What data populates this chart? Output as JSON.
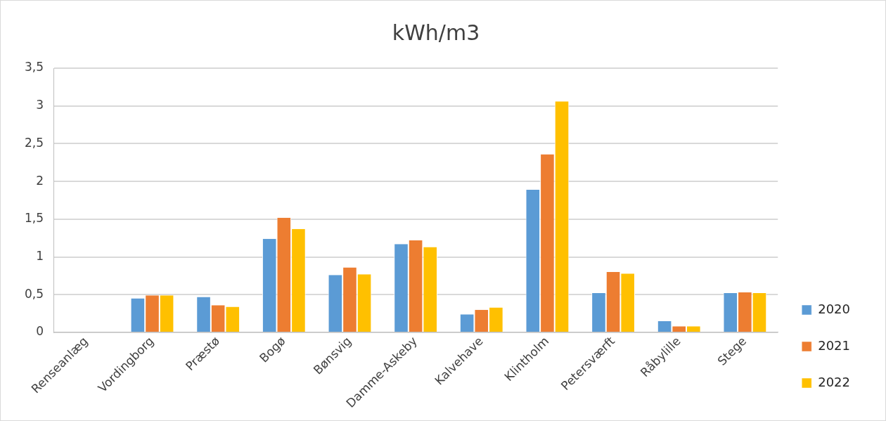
{
  "chart_data": {
    "type": "bar",
    "title": "kWh/m3",
    "categories": [
      "Renseanlæg",
      "Vordingborg",
      "Præstø",
      "Bogø",
      "Bønsvig",
      "Damme-Askeby",
      "Kalvehave",
      "Klintholm",
      "Petersværft",
      "Råbylille",
      "Stege"
    ],
    "series": [
      {
        "name": "2020",
        "color": "#5b9bd5",
        "values": [
          null,
          0.45,
          0.47,
          1.24,
          0.76,
          1.17,
          0.24,
          1.89,
          0.52,
          0.15,
          0.52
        ]
      },
      {
        "name": "2021",
        "color": "#ed7d31",
        "values": [
          null,
          0.49,
          0.36,
          1.52,
          0.86,
          1.22,
          0.3,
          2.36,
          0.8,
          0.08,
          0.53
        ]
      },
      {
        "name": "2022",
        "color": "#ffc000",
        "values": [
          null,
          0.49,
          0.34,
          1.37,
          0.77,
          1.13,
          0.33,
          3.06,
          0.78,
          0.08,
          0.52
        ]
      }
    ],
    "ylim": [
      0,
      3.5
    ],
    "yticks": [
      {
        "value": 0,
        "label": "0"
      },
      {
        "value": 0.5,
        "label": "0,5"
      },
      {
        "value": 1,
        "label": "1"
      },
      {
        "value": 1.5,
        "label": "1,5"
      },
      {
        "value": 2,
        "label": "2"
      },
      {
        "value": 2.5,
        "label": "2,5"
      },
      {
        "value": 3,
        "label": "3"
      },
      {
        "value": 3.5,
        "label": "3,5"
      }
    ],
    "grid": "y",
    "legend": "right"
  }
}
